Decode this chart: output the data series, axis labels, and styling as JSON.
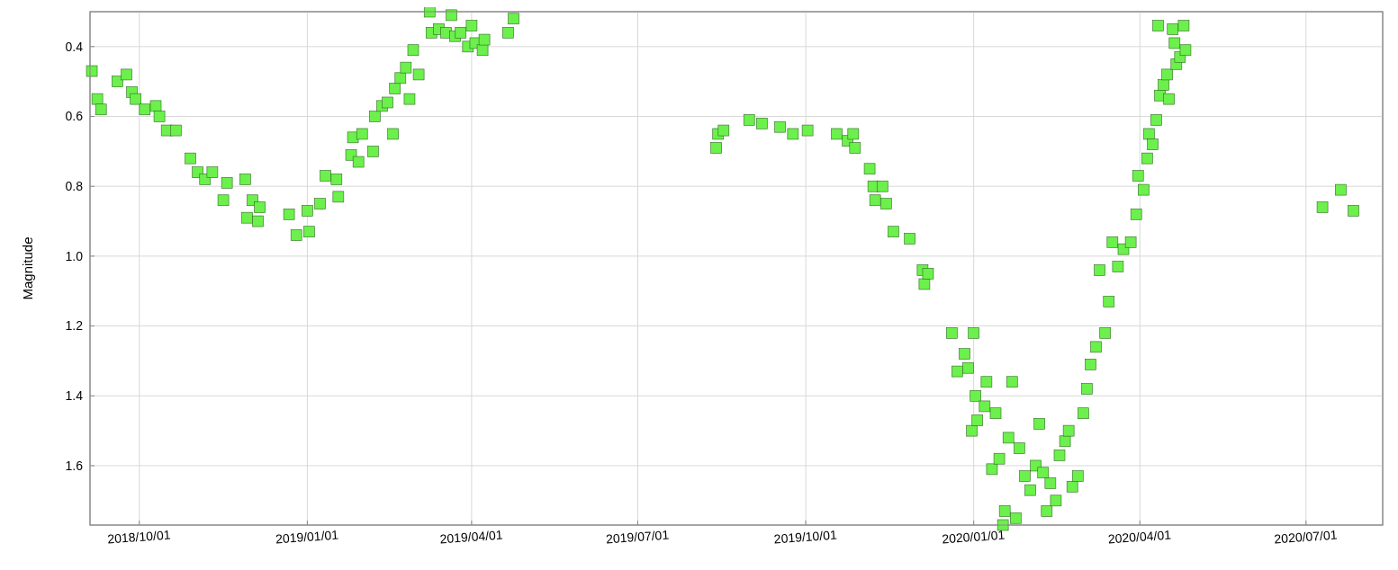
{
  "chart_data": {
    "type": "scatter",
    "ylabel": "Magnitude",
    "marker": "square",
    "grid": true,
    "xlim": [
      "2018-09-04",
      "2020-08-12"
    ],
    "xticks": [
      {
        "value": "2018-10-01",
        "label": "2018/10/01"
      },
      {
        "value": "2019-01-01",
        "label": "2019/01/01"
      },
      {
        "value": "2019-04-01",
        "label": "2019/04/01"
      },
      {
        "value": "2019-07-01",
        "label": "2019/07/01"
      },
      {
        "value": "2019-10-01",
        "label": "2019/10/01"
      },
      {
        "value": "2020-01-01",
        "label": "2020/01/01"
      },
      {
        "value": "2020-04-01",
        "label": "2020/04/01"
      },
      {
        "value": "2020-07-01",
        "label": "2020/07/01"
      }
    ],
    "ylim": [
      1.77,
      0.3
    ],
    "yticks": [
      {
        "value": 0.4,
        "label": "0.4"
      },
      {
        "value": 0.6,
        "label": "0.6"
      },
      {
        "value": 0.8,
        "label": "0.8"
      },
      {
        "value": 1.0,
        "label": "1.0"
      },
      {
        "value": 1.2,
        "label": "1.2"
      },
      {
        "value": 1.4,
        "label": "1.4"
      },
      {
        "value": 1.6,
        "label": "1.6"
      }
    ],
    "series": [
      {
        "color": "#6cf04c",
        "x": [
          "2018-09-05",
          "2018-09-08",
          "2018-09-10",
          "2018-09-19",
          "2018-09-24",
          "2018-09-27",
          "2018-09-29",
          "2018-10-04",
          "2018-10-10",
          "2018-10-12",
          "2018-10-16",
          "2018-10-21",
          "2018-10-29",
          "2018-11-02",
          "2018-11-06",
          "2018-11-10",
          "2018-11-16",
          "2018-11-18",
          "2018-11-28",
          "2018-11-29",
          "2018-12-02",
          "2018-12-05",
          "2018-12-06",
          "2018-12-22",
          "2018-12-26",
          "2019-01-01",
          "2019-01-02",
          "2019-01-08",
          "2019-01-11",
          "2019-01-17",
          "2019-01-18",
          "2019-01-25",
          "2019-01-26",
          "2019-01-29",
          "2019-01-31",
          "2019-02-06",
          "2019-02-07",
          "2019-02-11",
          "2019-02-14",
          "2019-02-17",
          "2019-02-18",
          "2019-02-21",
          "2019-02-24",
          "2019-02-26",
          "2019-02-28",
          "2019-03-03",
          "2019-03-09",
          "2019-03-10",
          "2019-03-14",
          "2019-03-18",
          "2019-03-21",
          "2019-03-23",
          "2019-03-26",
          "2019-03-30",
          "2019-04-01",
          "2019-04-03",
          "2019-04-07",
          "2019-04-08",
          "2019-04-21",
          "2019-04-24",
          "2019-08-13",
          "2019-08-14",
          "2019-08-17",
          "2019-08-31",
          "2019-09-07",
          "2019-09-17",
          "2019-09-24",
          "2019-10-02",
          "2019-10-18",
          "2019-10-24",
          "2019-10-27",
          "2019-10-28",
          "2019-11-05",
          "2019-11-07",
          "2019-11-08",
          "2019-11-12",
          "2019-11-14",
          "2019-11-18",
          "2019-11-27",
          "2019-12-04",
          "2019-12-05",
          "2019-12-07",
          "2019-12-20",
          "2019-12-23",
          "2019-12-27",
          "2019-12-29",
          "2019-12-31",
          "2020-01-01",
          "2020-01-02",
          "2020-01-03",
          "2020-01-07",
          "2020-01-08",
          "2020-01-11",
          "2020-01-13",
          "2020-01-15",
          "2020-01-17",
          "2020-01-18",
          "2020-01-20",
          "2020-01-22",
          "2020-01-24",
          "2020-01-26",
          "2020-01-29",
          "2020-02-01",
          "2020-02-04",
          "2020-02-06",
          "2020-02-08",
          "2020-02-10",
          "2020-02-12",
          "2020-02-15",
          "2020-02-17",
          "2020-02-20",
          "2020-02-22",
          "2020-02-24",
          "2020-02-27",
          "2020-03-01",
          "2020-03-03",
          "2020-03-05",
          "2020-03-08",
          "2020-03-10",
          "2020-03-13",
          "2020-03-15",
          "2020-03-17",
          "2020-03-20",
          "2020-03-23",
          "2020-03-27",
          "2020-03-30",
          "2020-03-31",
          "2020-04-03",
          "2020-04-05",
          "2020-04-06",
          "2020-04-08",
          "2020-04-10",
          "2020-04-11",
          "2020-04-12",
          "2020-04-14",
          "2020-04-16",
          "2020-04-17",
          "2020-04-19",
          "2020-04-20",
          "2020-04-21",
          "2020-04-23",
          "2020-04-25",
          "2020-04-26",
          "2020-07-10",
          "2020-07-20",
          "2020-07-27"
        ],
        "values": [
          0.47,
          0.55,
          0.58,
          0.5,
          0.48,
          0.53,
          0.55,
          0.58,
          0.57,
          0.6,
          0.64,
          0.64,
          0.72,
          0.76,
          0.78,
          0.76,
          0.84,
          0.79,
          0.78,
          0.89,
          0.84,
          0.9,
          0.86,
          0.88,
          0.94,
          0.87,
          0.93,
          0.85,
          0.77,
          0.78,
          0.83,
          0.71,
          0.66,
          0.73,
          0.65,
          0.7,
          0.6,
          0.57,
          0.56,
          0.65,
          0.52,
          0.49,
          0.46,
          0.55,
          0.41,
          0.48,
          0.3,
          0.36,
          0.35,
          0.36,
          0.31,
          0.37,
          0.36,
          0.4,
          0.34,
          0.39,
          0.41,
          0.38,
          0.36,
          0.32,
          0.69,
          0.65,
          0.64,
          0.61,
          0.62,
          0.63,
          0.65,
          0.64,
          0.65,
          0.67,
          0.65,
          0.69,
          0.75,
          0.8,
          0.84,
          0.8,
          0.85,
          0.93,
          0.95,
          1.04,
          1.08,
          1.05,
          1.22,
          1.33,
          1.28,
          1.32,
          1.5,
          1.22,
          1.4,
          1.47,
          1.43,
          1.36,
          1.61,
          1.45,
          1.58,
          1.77,
          1.73,
          1.52,
          1.36,
          1.75,
          1.55,
          1.63,
          1.67,
          1.6,
          1.48,
          1.62,
          1.73,
          1.65,
          1.7,
          1.57,
          1.53,
          1.5,
          1.66,
          1.63,
          1.45,
          1.38,
          1.31,
          1.26,
          1.04,
          1.22,
          1.13,
          0.96,
          1.03,
          0.98,
          0.96,
          0.88,
          0.77,
          0.81,
          0.72,
          0.65,
          0.68,
          0.61,
          0.34,
          0.54,
          0.51,
          0.48,
          0.55,
          0.35,
          0.39,
          0.45,
          0.43,
          0.34,
          0.41,
          0.86,
          0.81,
          0.87
        ]
      }
    ]
  }
}
